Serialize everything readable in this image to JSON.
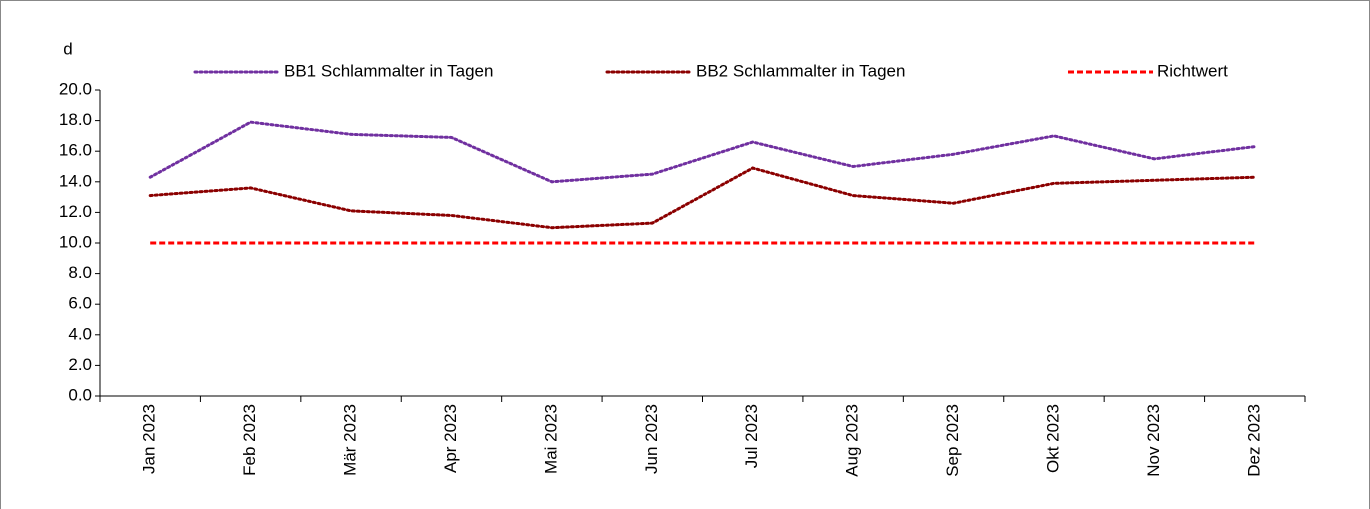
{
  "chart_data": {
    "type": "line",
    "ylabel": "d",
    "categories": [
      "Jan 2023",
      "Feb 2023",
      "Mär 2023",
      "Apr 2023",
      "Mai 2023",
      "Jun 2023",
      "Jul 2023",
      "Aug 2023",
      "Sep 2023",
      "Okt 2023",
      "Nov 2023",
      "Dez 2023"
    ],
    "series": [
      {
        "name": "BB1 Schlammalter in Tagen",
        "color": "#7030a0",
        "linestyle": "dotted",
        "values": [
          14.3,
          17.9,
          17.1,
          16.9,
          14.0,
          14.5,
          16.6,
          15.0,
          15.8,
          17.0,
          15.5,
          16.3
        ]
      },
      {
        "name": "BB2 Schlammalter in Tagen",
        "color": "#8b0000",
        "linestyle": "dotted",
        "values": [
          13.1,
          13.6,
          12.1,
          11.8,
          11.0,
          11.3,
          14.9,
          13.1,
          12.6,
          13.9,
          14.1,
          14.3
        ]
      },
      {
        "name": "Richtwert",
        "color": "#ff0000",
        "linestyle": "dashed",
        "values": [
          10,
          10,
          10,
          10,
          10,
          10,
          10,
          10,
          10,
          10,
          10,
          10
        ]
      }
    ],
    "ylim": [
      0,
      20
    ],
    "yticks": [
      {
        "value": 0,
        "label": "0.0"
      },
      {
        "value": 2,
        "label": "2.0"
      },
      {
        "value": 4,
        "label": "4.0"
      },
      {
        "value": 6,
        "label": "6.0"
      },
      {
        "value": 8,
        "label": "8.0"
      },
      {
        "value": 10,
        "label": "10.0"
      },
      {
        "value": 12,
        "label": "12.0"
      },
      {
        "value": 14,
        "label": "14.0"
      },
      {
        "value": 16,
        "label": "16.0"
      },
      {
        "value": 18,
        "label": "18.0"
      },
      {
        "value": 20,
        "label": "20.0"
      }
    ],
    "legend": "top",
    "grid": false
  }
}
